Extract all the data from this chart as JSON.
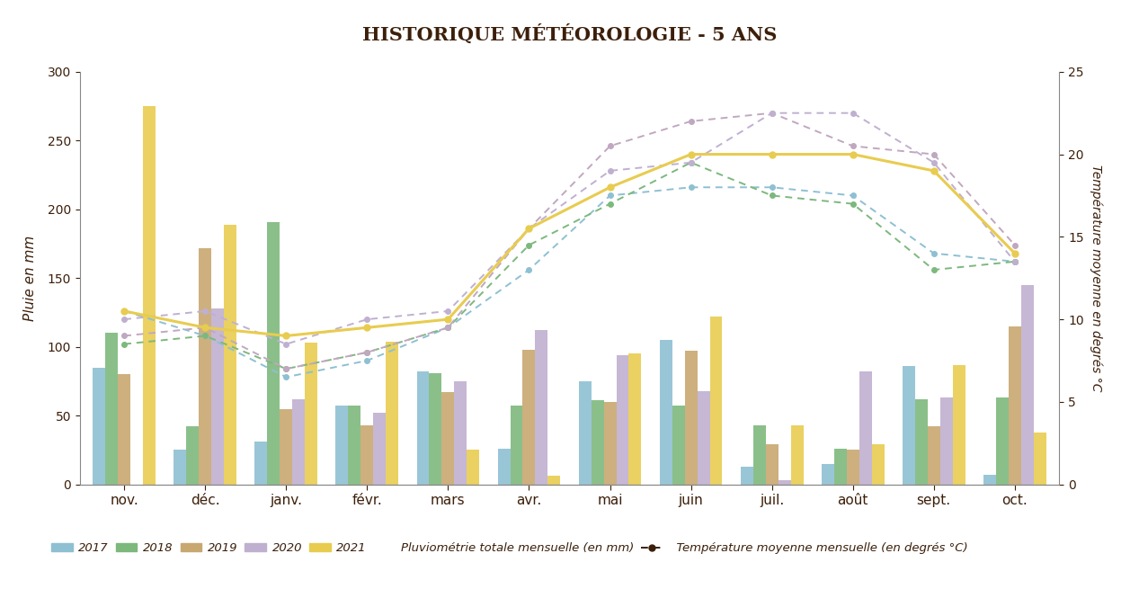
{
  "title": "HISTORIQUE MÉTÉOROLOGIE - 5 ANS",
  "months": [
    "nov.",
    "déc.",
    "janv.",
    "févr.",
    "mars",
    "avr.",
    "mai",
    "juin",
    "juil.",
    "août",
    "sept.",
    "oct."
  ],
  "ylabel_left": "Pluie en mm",
  "ylabel_right": "Température moyenne en degrés °C",
  "ylim_left": [
    0,
    300
  ],
  "ylim_right": [
    0,
    25
  ],
  "years": [
    "2017",
    "2018",
    "2019",
    "2020",
    "2021"
  ],
  "bar_colors": [
    "#8ec0d2",
    "#7db87d",
    "#c8a870",
    "#c0b0d0",
    "#e8cc50"
  ],
  "bar_data": {
    "2017": [
      85,
      25,
      31,
      57,
      82,
      26,
      75,
      105,
      13,
      15,
      86,
      7
    ],
    "2018": [
      110,
      42,
      191,
      57,
      81,
      57,
      61,
      57,
      43,
      26,
      62,
      63
    ],
    "2019": [
      80,
      172,
      55,
      43,
      67,
      98,
      60,
      97,
      29,
      25,
      42,
      115
    ],
    "2020": [
      0,
      128,
      62,
      52,
      75,
      112,
      94,
      68,
      3,
      82,
      63,
      145
    ],
    "2021": [
      275,
      189,
      103,
      104,
      25,
      6,
      95,
      122,
      43,
      29,
      87,
      38
    ]
  },
  "temp_line_colors": [
    "#8ec0d2",
    "#7db87d",
    "#c0a8c0",
    "#c0b0d0",
    "#e8cc50"
  ],
  "temp_data": {
    "2017": [
      10.5,
      9.0,
      6.5,
      7.5,
      9.5,
      13.0,
      17.5,
      18.0,
      18.0,
      17.5,
      14.0,
      13.5
    ],
    "2018": [
      8.5,
      9.0,
      7.0,
      8.0,
      9.5,
      14.5,
      17.0,
      19.5,
      17.5,
      17.0,
      13.0,
      13.5
    ],
    "2019": [
      9.0,
      9.5,
      7.0,
      8.0,
      9.5,
      15.5,
      20.5,
      22.0,
      22.5,
      20.5,
      20.0,
      14.5
    ],
    "2020": [
      10.0,
      10.5,
      8.5,
      10.0,
      10.5,
      15.5,
      19.0,
      19.5,
      22.5,
      22.5,
      19.5,
      13.5
    ],
    "2021": [
      10.5,
      9.5,
      9.0,
      9.5,
      10.0,
      15.5,
      18.0,
      20.0,
      20.0,
      20.0,
      19.0,
      14.0
    ]
  },
  "background_color": "#ffffff",
  "title_color": "#3c1f0a",
  "text_color": "#3c1f0a",
  "legend_text": "Pluviométrie totale mensuelle (en mm)",
  "legend_temp_text": "Température moyenne mensuelle (en degrés °C)"
}
